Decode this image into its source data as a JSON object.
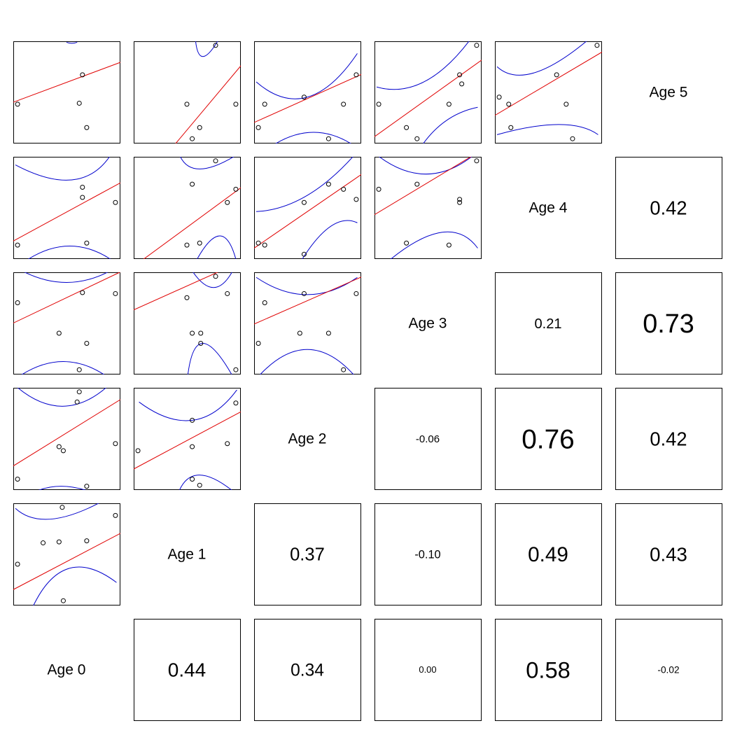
{
  "chart_data": {
    "type": "scatter-matrix",
    "variables": [
      "Age 0",
      "Age 1",
      "Age 2",
      "Age 3",
      "Age 4",
      "Age 5"
    ],
    "diagonal_labels": [
      "Age 0",
      "Age 1",
      "Age 2",
      "Age 3",
      "Age 4",
      "Age 5"
    ],
    "correlations": [
      {
        "x": 0,
        "y": 1,
        "label": "0.44",
        "value": 0.44
      },
      {
        "x": 0,
        "y": 2,
        "label": "0.34",
        "value": 0.34
      },
      {
        "x": 0,
        "y": 3,
        "label": "0.00",
        "value": 0.0
      },
      {
        "x": 0,
        "y": 4,
        "label": "0.58",
        "value": 0.58
      },
      {
        "x": 0,
        "y": 5,
        "label": "-0.02",
        "value": -0.02
      },
      {
        "x": 1,
        "y": 2,
        "label": "0.37",
        "value": 0.37
      },
      {
        "x": 1,
        "y": 3,
        "label": "-0.10",
        "value": -0.1
      },
      {
        "x": 1,
        "y": 4,
        "label": "0.49",
        "value": 0.49
      },
      {
        "x": 1,
        "y": 5,
        "label": "0.43",
        "value": 0.43
      },
      {
        "x": 2,
        "y": 3,
        "label": "-0.06",
        "value": -0.06
      },
      {
        "x": 2,
        "y": 4,
        "label": "0.76",
        "value": 0.76
      },
      {
        "x": 2,
        "y": 5,
        "label": "0.42",
        "value": 0.42
      },
      {
        "x": 3,
        "y": 4,
        "label": "0.21",
        "value": 0.21
      },
      {
        "x": 3,
        "y": 5,
        "label": "0.73",
        "value": 0.73
      },
      {
        "x": 4,
        "y": 5,
        "label": "0.42",
        "value": 0.42
      }
    ],
    "scatter_panels": [
      {
        "x": 0,
        "y": 1,
        "points": [
          [
            0.04,
            0.4
          ],
          [
            0.28,
            0.61
          ],
          [
            0.43,
            0.62
          ],
          [
            0.46,
            0.96
          ],
          [
            0.69,
            0.63
          ],
          [
            0.96,
            0.88
          ],
          [
            0.47,
            0.04
          ]
        ],
        "fit": [
          0.15,
          0.55
        ],
        "band": {
          "lower": [
            [
              0.15,
              -0.1
            ],
            [
              0.5,
              0.35
            ],
            [
              0.97,
              0.22
            ]
          ],
          "upper": [
            [
              0.02,
              0.95
            ],
            [
              0.4,
              0.85
            ],
            [
              0.97,
              1.1
            ]
          ]
        }
      },
      {
        "x": 0,
        "y": 2,
        "points": [
          [
            0.04,
            0.1
          ],
          [
            0.43,
            0.42
          ],
          [
            0.47,
            0.38
          ],
          [
            0.69,
            0.03
          ],
          [
            0.96,
            0.45
          ],
          [
            0.62,
            0.96
          ],
          [
            0.6,
            0.86
          ]
        ],
        "fit": [
          0.23,
          0.65
        ],
        "band": {
          "lower": [
            [
              0.02,
              -0.15
            ],
            [
              0.45,
              0.03
            ],
            [
              0.97,
              -0.15
            ]
          ],
          "upper": [
            [
              0.02,
              1.02
            ],
            [
              0.5,
              0.82
            ],
            [
              0.97,
              1.1
            ]
          ]
        }
      },
      {
        "x": 0,
        "y": 3,
        "points": [
          [
            0.04,
            0.7
          ],
          [
            0.43,
            0.4
          ],
          [
            0.69,
            0.3
          ],
          [
            0.96,
            0.79
          ],
          [
            0.65,
            0.8
          ],
          [
            0.62,
            0.04
          ]
        ],
        "fit": [
          0.5,
          0.5
        ],
        "band": {
          "lower": [
            [
              0.02,
              -0.05
            ],
            [
              0.5,
              0.12
            ],
            [
              0.97,
              -0.1
            ]
          ],
          "upper": [
            [
              0.02,
              1.05
            ],
            [
              0.5,
              0.9
            ],
            [
              0.97,
              1.05
            ]
          ]
        }
      },
      {
        "x": 0,
        "y": 4,
        "points": [
          [
            0.04,
            0.13
          ],
          [
            0.69,
            0.15
          ],
          [
            0.65,
            0.7
          ],
          [
            0.65,
            0.6
          ],
          [
            0.96,
            0.55
          ]
        ],
        "fit": [
          0.17,
          0.57
        ],
        "band": {
          "lower": [
            [
              0.02,
              -0.1
            ],
            [
              0.5,
              0.12
            ],
            [
              0.97,
              -0.05
            ]
          ],
          "upper": [
            [
              0.02,
              0.92
            ],
            [
              0.6,
              0.78
            ],
            [
              0.97,
              1.12
            ]
          ]
        }
      },
      {
        "x": 0,
        "y": 5,
        "points": [
          [
            0.04,
            0.38
          ],
          [
            0.65,
            0.67
          ],
          [
            0.62,
            0.39
          ],
          [
            0.69,
            0.15
          ]
        ],
        "fit": [
          0.4,
          0.39
        ],
        "band": {
          "lower": [
            [
              0.02,
              -0.3
            ],
            [
              0.5,
              -0.3
            ],
            [
              0.97,
              -0.3
            ]
          ],
          "upper": [
            [
              0.5,
              0.99
            ],
            [
              0.55,
              0.98
            ],
            [
              0.6,
              0.99
            ]
          ]
        }
      },
      {
        "x": 1,
        "y": 2,
        "points": [
          [
            0.04,
            0.38
          ],
          [
            0.55,
            0.42
          ],
          [
            0.62,
            0.04
          ],
          [
            0.55,
            0.1
          ],
          [
            0.88,
            0.45
          ],
          [
            0.96,
            0.85
          ],
          [
            0.55,
            0.68
          ]
        ],
        "fit": [
          0.2,
          0.56
        ],
        "band": {
          "lower": [
            [
              0.4,
              -0.1
            ],
            [
              0.6,
              0.14
            ],
            [
              0.97,
              -0.05
            ]
          ],
          "upper": [
            [
              0.05,
              0.86
            ],
            [
              0.55,
              0.68
            ],
            [
              0.97,
              0.98
            ]
          ]
        }
      },
      {
        "x": 1,
        "y": 3,
        "points": [
          [
            0.5,
            0.75
          ],
          [
            0.55,
            0.4
          ],
          [
            0.63,
            0.4
          ],
          [
            0.63,
            0.3
          ],
          [
            0.88,
            0.79
          ],
          [
            0.96,
            0.04
          ],
          [
            0.77,
            0.96
          ]
        ],
        "fit": [
          0.63,
          0.47
        ],
        "band": {
          "lower": [
            [
              0.5,
              -0.1
            ],
            [
              0.65,
              0.3
            ],
            [
              0.97,
              -0.1
            ]
          ],
          "upper": [
            [
              0.5,
              1.1
            ],
            [
              0.75,
              0.85
            ],
            [
              0.97,
              1.1
            ]
          ]
        }
      },
      {
        "x": 1,
        "y": 4,
        "points": [
          [
            0.5,
            0.13
          ],
          [
            0.62,
            0.15
          ],
          [
            0.55,
            0.73
          ],
          [
            0.77,
            0.96
          ],
          [
            0.88,
            0.55
          ],
          [
            0.96,
            0.68
          ]
        ],
        "fit": [
          -0.08,
          0.77
        ],
        "band": {
          "lower": [
            [
              0.55,
              -0.1
            ],
            [
              0.8,
              0.22
            ],
            [
              0.97,
              -0.05
            ]
          ],
          "upper": [
            [
              0.43,
              1.02
            ],
            [
              0.62,
              0.88
            ],
            [
              0.97,
              1.02
            ]
          ]
        }
      },
      {
        "x": 1,
        "y": 5,
        "points": [
          [
            0.5,
            0.38
          ],
          [
            0.62,
            0.15
          ],
          [
            0.55,
            0.04
          ],
          [
            0.96,
            0.38
          ],
          [
            0.77,
            0.96
          ]
        ],
        "fit": [
          -0.5,
          1.25
        ],
        "band": {
          "lower": [
            [
              0.55,
              -0.1
            ],
            [
              0.8,
              -0.1
            ]
          ],
          "upper": [
            [
              0.58,
              1.02
            ],
            [
              0.65,
              0.85
            ],
            [
              0.8,
              1.02
            ]
          ]
        }
      },
      {
        "x": 2,
        "y": 3,
        "points": [
          [
            0.04,
            0.3
          ],
          [
            0.1,
            0.7
          ],
          [
            0.43,
            0.4
          ],
          [
            0.7,
            0.4
          ],
          [
            0.47,
            0.79
          ],
          [
            0.96,
            0.79
          ],
          [
            0.84,
            0.04
          ]
        ],
        "fit": [
          0.49,
          0.46
        ],
        "band": {
          "lower": [
            [
              0.02,
              -0.05
            ],
            [
              0.5,
              0.24
            ],
            [
              0.97,
              -0.05
            ]
          ],
          "upper": [
            [
              0.02,
              0.95
            ],
            [
              0.5,
              0.78
            ],
            [
              0.97,
              0.95
            ]
          ]
        }
      },
      {
        "x": 2,
        "y": 4,
        "points": [
          [
            0.04,
            0.15
          ],
          [
            0.1,
            0.13
          ],
          [
            0.47,
            0.55
          ],
          [
            0.7,
            0.73
          ],
          [
            0.84,
            0.68
          ],
          [
            0.96,
            0.58
          ],
          [
            0.47,
            0.04
          ]
        ],
        "fit": [
          0.1,
          0.72
        ],
        "band": {
          "lower": [
            [
              0.4,
              -0.1
            ],
            [
              0.7,
              0.3
            ],
            [
              0.97,
              0.35
            ]
          ],
          "upper": [
            [
              0.02,
              0.46
            ],
            [
              0.5,
              0.62
            ],
            [
              0.97,
              1.05
            ]
          ]
        }
      },
      {
        "x": 2,
        "y": 5,
        "points": [
          [
            0.04,
            0.15
          ],
          [
            0.1,
            0.38
          ],
          [
            0.47,
            0.45
          ],
          [
            0.84,
            0.38
          ],
          [
            0.96,
            0.67
          ],
          [
            0.7,
            0.04
          ]
        ],
        "fit": [
          0.2,
          0.47
        ],
        "band": {
          "lower": [
            [
              0.02,
              -0.15
            ],
            [
              0.5,
              0.1
            ],
            [
              0.97,
              -0.05
            ]
          ],
          "upper": [
            [
              0.02,
              0.6
            ],
            [
              0.5,
              0.45
            ],
            [
              0.97,
              0.88
            ]
          ]
        }
      },
      {
        "x": 3,
        "y": 4,
        "points": [
          [
            0.04,
            0.68
          ],
          [
            0.4,
            0.73
          ],
          [
            0.3,
            0.15
          ],
          [
            0.7,
            0.13
          ],
          [
            0.8,
            0.58
          ],
          [
            0.8,
            0.55
          ],
          [
            0.96,
            0.96
          ]
        ],
        "fit": [
          0.43,
          0.63
        ],
        "band": {
          "lower": [
            [
              0.05,
              -0.1
            ],
            [
              0.6,
              0.25
            ],
            [
              0.97,
              0.1
            ]
          ],
          "upper": [
            [
              0.02,
              1.02
            ],
            [
              0.5,
              0.83
            ],
            [
              0.97,
              1.05
            ]
          ]
        }
      },
      {
        "x": 3,
        "y": 5,
        "points": [
          [
            0.04,
            0.38
          ],
          [
            0.3,
            0.15
          ],
          [
            0.4,
            0.04
          ],
          [
            0.7,
            0.38
          ],
          [
            0.8,
            0.67
          ],
          [
            0.82,
            0.58
          ],
          [
            0.96,
            0.96
          ]
        ],
        "fit": [
          0.06,
          0.75
        ],
        "band": {
          "lower": [
            [
              0.4,
              -0.1
            ],
            [
              0.65,
              0.2
            ],
            [
              0.97,
              0.35
            ]
          ],
          "upper": [
            [
              0.02,
              0.55
            ],
            [
              0.5,
              0.62
            ],
            [
              0.97,
              1.12
            ]
          ]
        }
      },
      {
        "x": 4,
        "y": 5,
        "points": [
          [
            0.04,
            0.45
          ],
          [
            0.13,
            0.38
          ],
          [
            0.15,
            0.15
          ],
          [
            0.58,
            0.67
          ],
          [
            0.67,
            0.38
          ],
          [
            0.73,
            0.04
          ],
          [
            0.96,
            0.96
          ]
        ],
        "fit": [
          0.27,
          0.62
        ],
        "band": {
          "lower": [
            [
              0.02,
              0.08
            ],
            [
              0.6,
              0.18
            ],
            [
              0.97,
              0.08
            ]
          ],
          "upper": [
            [
              0.02,
              0.75
            ],
            [
              0.4,
              0.7
            ],
            [
              0.97,
              1.1
            ]
          ]
        }
      }
    ],
    "colors": {
      "fit_line": "#e00000",
      "band": "#0000cc",
      "points": "#000000",
      "frame": "#000000"
    },
    "lower_triangle": "scatter with linear fit and confidence band",
    "upper_triangle": "correlation coefficient, text size scaled by magnitude",
    "grid": false,
    "legend": "none"
  }
}
